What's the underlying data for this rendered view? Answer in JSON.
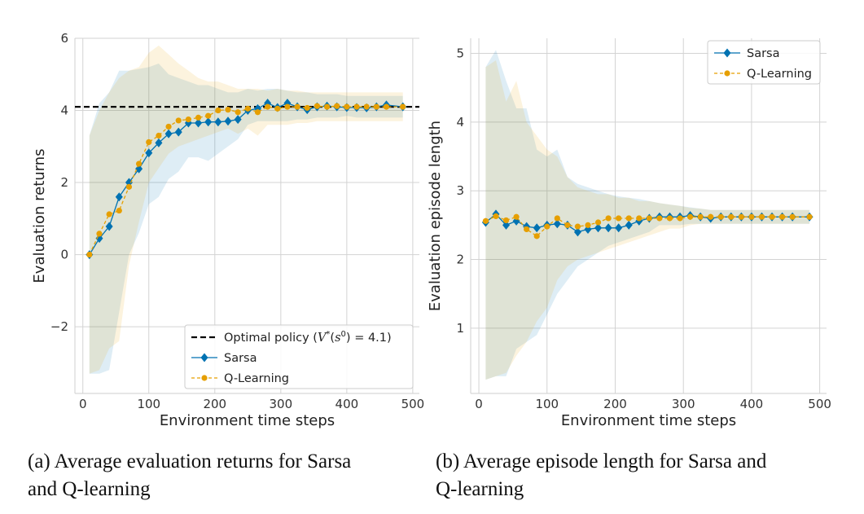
{
  "figure": {
    "colors": {
      "sarsa": "#0072B2",
      "qlearning": "#E69F00",
      "optimal": "#000000",
      "grid": "#d3d3d3",
      "axes": "#cfcfcf"
    },
    "captions": [
      {
        "line1": "(a) Average evaluation returns for Sarsa",
        "line2": "and Q-learning"
      },
      {
        "line1": "(b) Average episode length for Sarsa and",
        "line2": "Q-learning"
      }
    ]
  },
  "chart_data": [
    {
      "type": "line",
      "xlabel": "Environment time steps",
      "ylabel": "Evaluation returns",
      "xlim": [
        -12,
        510
      ],
      "ylim": [
        -3.85,
        6.0
      ],
      "xticks": [
        0,
        100,
        200,
        300,
        400,
        500
      ],
      "yticks": [
        -2,
        0,
        2,
        4,
        6
      ],
      "ytick_labels": [
        "−2",
        "0",
        "2",
        "4",
        "6"
      ],
      "grid": true,
      "legend_position": "lower-right",
      "reference_line": {
        "label": "Optimal policy (V*(s⁰) = 4.1)",
        "y": 4.1,
        "style": "dashed"
      },
      "x": [
        10,
        25,
        40,
        55,
        70,
        85,
        100,
        115,
        130,
        145,
        160,
        175,
        190,
        205,
        220,
        235,
        250,
        265,
        280,
        295,
        310,
        325,
        340,
        355,
        370,
        385,
        400,
        415,
        430,
        445,
        460,
        485
      ],
      "series": [
        {
          "name": "Sarsa",
          "marker": "diamond",
          "linestyle": "solid",
          "values": [
            0.0,
            0.45,
            0.78,
            1.6,
            2.0,
            2.38,
            2.82,
            3.1,
            3.35,
            3.4,
            3.65,
            3.65,
            3.68,
            3.68,
            3.7,
            3.75,
            4.0,
            4.05,
            4.2,
            4.08,
            4.2,
            4.1,
            4.02,
            4.1,
            4.12,
            4.1,
            4.08,
            4.08,
            4.07,
            4.1,
            4.15,
            4.1
          ],
          "lower": [
            -3.3,
            -3.3,
            -3.2,
            -1.6,
            0.0,
            0.6,
            1.4,
            1.6,
            2.1,
            2.3,
            2.7,
            2.7,
            2.6,
            2.8,
            3.0,
            3.2,
            3.6,
            3.7,
            3.7,
            3.7,
            3.7,
            3.75,
            3.75,
            3.8,
            3.8,
            3.8,
            3.85,
            3.8,
            3.8,
            3.8,
            3.8,
            3.8
          ],
          "upper": [
            3.3,
            4.2,
            4.5,
            5.1,
            5.1,
            5.15,
            5.2,
            5.3,
            5.0,
            4.9,
            4.8,
            4.7,
            4.7,
            4.6,
            4.5,
            4.5,
            4.6,
            4.55,
            4.6,
            4.6,
            4.55,
            4.5,
            4.5,
            4.45,
            4.45,
            4.45,
            4.4,
            4.4,
            4.4,
            4.4,
            4.4,
            4.4
          ]
        },
        {
          "name": "Q-Learning",
          "marker": "circle",
          "linestyle": "dashed",
          "values": [
            0.0,
            0.58,
            1.12,
            1.22,
            1.88,
            2.52,
            3.12,
            3.3,
            3.55,
            3.72,
            3.75,
            3.8,
            3.85,
            4.0,
            4.02,
            3.95,
            4.05,
            3.95,
            4.1,
            4.05,
            4.1,
            4.1,
            4.07,
            4.12,
            4.1,
            4.12,
            4.1,
            4.1,
            4.1,
            4.1,
            4.1,
            4.1
          ],
          "lower": [
            -3.3,
            -3.2,
            -2.6,
            -2.4,
            -0.3,
            0.9,
            2.0,
            2.4,
            2.8,
            3.0,
            3.1,
            3.2,
            3.3,
            3.4,
            3.5,
            3.35,
            3.5,
            3.3,
            3.6,
            3.6,
            3.6,
            3.65,
            3.65,
            3.7,
            3.7,
            3.7,
            3.7,
            3.7,
            3.7,
            3.7,
            3.7,
            3.7
          ],
          "upper": [
            3.3,
            4.0,
            4.5,
            4.9,
            5.1,
            5.2,
            5.6,
            5.8,
            5.55,
            5.3,
            5.1,
            4.9,
            4.8,
            4.8,
            4.7,
            4.6,
            4.6,
            4.6,
            4.55,
            4.6,
            4.55,
            4.55,
            4.5,
            4.5,
            4.5,
            4.5,
            4.5,
            4.5,
            4.5,
            4.5,
            4.5,
            4.5
          ]
        }
      ]
    },
    {
      "type": "line",
      "xlabel": "Environment time steps",
      "ylabel": "Evaluation episode length",
      "xlim": [
        -12,
        510
      ],
      "ylim": [
        0.05,
        5.22
      ],
      "xticks": [
        0,
        100,
        200,
        300,
        400,
        500
      ],
      "yticks": [
        1,
        2,
        3,
        4,
        5
      ],
      "ytick_labels": [
        "1",
        "2",
        "3",
        "4",
        "5"
      ],
      "grid": true,
      "legend_position": "upper-right",
      "x": [
        10,
        25,
        40,
        55,
        70,
        85,
        100,
        115,
        130,
        145,
        160,
        175,
        190,
        205,
        220,
        235,
        250,
        265,
        280,
        295,
        310,
        325,
        340,
        355,
        370,
        385,
        400,
        415,
        430,
        445,
        460,
        485
      ],
      "series": [
        {
          "name": "Sarsa",
          "marker": "diamond",
          "linestyle": "solid",
          "values": [
            2.54,
            2.66,
            2.5,
            2.56,
            2.48,
            2.46,
            2.5,
            2.52,
            2.5,
            2.4,
            2.44,
            2.46,
            2.46,
            2.46,
            2.5,
            2.56,
            2.6,
            2.62,
            2.62,
            2.62,
            2.64,
            2.62,
            2.6,
            2.62,
            2.62,
            2.62,
            2.62,
            2.62,
            2.62,
            2.62,
            2.62,
            2.62
          ],
          "lower": [
            0.25,
            0.3,
            0.3,
            0.7,
            0.8,
            0.9,
            1.2,
            1.5,
            1.7,
            1.9,
            2.0,
            2.1,
            2.2,
            2.25,
            2.3,
            2.35,
            2.4,
            2.5,
            2.5,
            2.5,
            2.52,
            2.52,
            2.52,
            2.52,
            2.52,
            2.52,
            2.52,
            2.52,
            2.52,
            2.52,
            2.52,
            2.52
          ],
          "upper": [
            4.8,
            5.05,
            4.6,
            4.2,
            4.2,
            3.6,
            3.5,
            3.6,
            3.2,
            3.1,
            3.05,
            3.0,
            2.95,
            2.92,
            2.9,
            2.88,
            2.85,
            2.82,
            2.8,
            2.78,
            2.76,
            2.74,
            2.72,
            2.72,
            2.72,
            2.72,
            2.72,
            2.72,
            2.72,
            2.72,
            2.72,
            2.72
          ]
        },
        {
          "name": "Q-Learning",
          "marker": "circle",
          "linestyle": "dashed",
          "values": [
            2.56,
            2.63,
            2.57,
            2.62,
            2.44,
            2.34,
            2.48,
            2.6,
            2.5,
            2.48,
            2.5,
            2.54,
            2.6,
            2.6,
            2.6,
            2.6,
            2.6,
            2.6,
            2.6,
            2.6,
            2.62,
            2.62,
            2.62,
            2.62,
            2.62,
            2.62,
            2.62,
            2.62,
            2.62,
            2.62,
            2.62,
            2.62
          ],
          "lower": [
            0.25,
            0.3,
            0.35,
            0.6,
            0.8,
            1.1,
            1.3,
            1.7,
            1.9,
            2.0,
            2.05,
            2.1,
            2.15,
            2.2,
            2.25,
            2.3,
            2.35,
            2.4,
            2.45,
            2.45,
            2.5,
            2.52,
            2.52,
            2.52,
            2.52,
            2.52,
            2.52,
            2.52,
            2.52,
            2.52,
            2.52,
            2.52
          ],
          "upper": [
            4.8,
            4.9,
            4.3,
            4.6,
            4.0,
            3.8,
            3.6,
            3.5,
            3.2,
            3.05,
            3.0,
            2.95,
            2.95,
            2.9,
            2.9,
            2.85,
            2.85,
            2.82,
            2.8,
            2.78,
            2.75,
            2.74,
            2.72,
            2.72,
            2.72,
            2.72,
            2.72,
            2.72,
            2.72,
            2.72,
            2.72,
            2.72
          ]
        }
      ]
    }
  ]
}
